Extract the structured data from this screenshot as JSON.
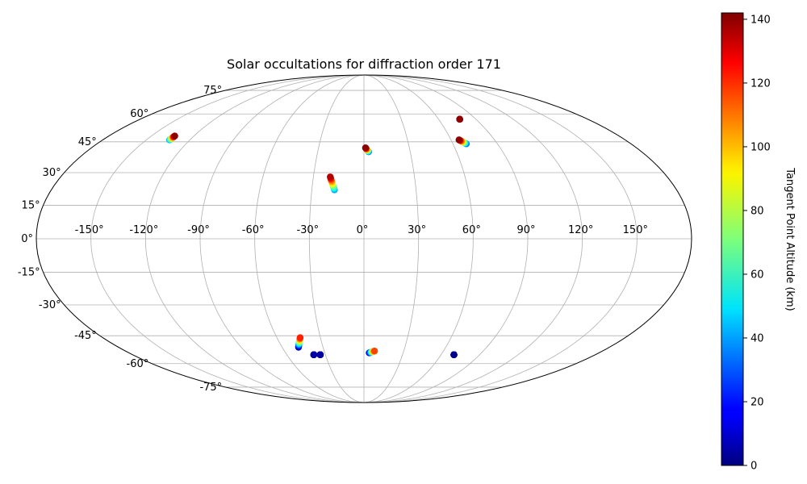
{
  "chart_data": {
    "type": "scatter",
    "projection": "mollweide",
    "title": "Solar occultations for diffraction order 171",
    "grid": true,
    "lon_ticks": [
      {
        "value": -150,
        "label": "-150°"
      },
      {
        "value": -120,
        "label": "-120°"
      },
      {
        "value": -90,
        "label": "-90°"
      },
      {
        "value": -60,
        "label": "-60°"
      },
      {
        "value": -30,
        "label": "-30°"
      },
      {
        "value": 0,
        "label": "0°"
      },
      {
        "value": 30,
        "label": "30°"
      },
      {
        "value": 60,
        "label": "60°"
      },
      {
        "value": 90,
        "label": "90°"
      },
      {
        "value": 120,
        "label": "120°"
      },
      {
        "value": 150,
        "label": "150°"
      }
    ],
    "lat_ticks": [
      {
        "value": 75,
        "label": "75°"
      },
      {
        "value": 60,
        "label": "60°"
      },
      {
        "value": 45,
        "label": "45°"
      },
      {
        "value": 30,
        "label": "30°"
      },
      {
        "value": 15,
        "label": "15°"
      },
      {
        "value": 0,
        "label": "0°"
      },
      {
        "value": -15,
        "label": "-15°"
      },
      {
        "value": -30,
        "label": "-30°"
      },
      {
        "value": -45,
        "label": "-45°"
      },
      {
        "value": -60,
        "label": "-60°"
      },
      {
        "value": -75,
        "label": "-75°"
      }
    ],
    "colorbar": {
      "label": "Tangent Point Altitude (km)",
      "range": [
        0,
        142
      ],
      "ticks": [
        {
          "value": 0,
          "label": "0"
        },
        {
          "value": 20,
          "label": "20"
        },
        {
          "value": 40,
          "label": "40"
        },
        {
          "value": 60,
          "label": "60"
        },
        {
          "value": 80,
          "label": "80"
        },
        {
          "value": 100,
          "label": "100"
        },
        {
          "value": 120,
          "label": "120"
        },
        {
          "value": 140,
          "label": "140"
        }
      ],
      "colormap": "jet"
    },
    "tracks": [
      {
        "start": [
          -134,
          46,
          40
        ],
        "end": [
          -133.5,
          48,
          140
        ]
      },
      {
        "start": [
          3,
          40,
          30
        ],
        "end": [
          1,
          42,
          140
        ]
      },
      {
        "start": [
          -17,
          22,
          40
        ],
        "end": [
          -20,
          28,
          135
        ]
      },
      {
        "start": [
          69,
          44,
          30
        ],
        "end": [
          65.5,
          46,
          140
        ]
      },
      {
        "start": [
          77,
          57,
          140
        ],
        "end": [
          77,
          57,
          140
        ]
      },
      {
        "start": [
          -48,
          -51,
          0
        ],
        "end": [
          -44,
          -46,
          120
        ]
      },
      {
        "start": [
          -39,
          -55,
          0
        ],
        "end": [
          -39,
          -55,
          5
        ]
      },
      {
        "start": [
          -34,
          -55,
          0
        ],
        "end": [
          -34,
          -55,
          5
        ]
      },
      {
        "start": [
          4,
          -54,
          5
        ],
        "end": [
          8,
          -53,
          115
        ]
      },
      {
        "start": [
          70,
          -55,
          0
        ],
        "end": [
          70,
          -55,
          2
        ]
      }
    ]
  }
}
